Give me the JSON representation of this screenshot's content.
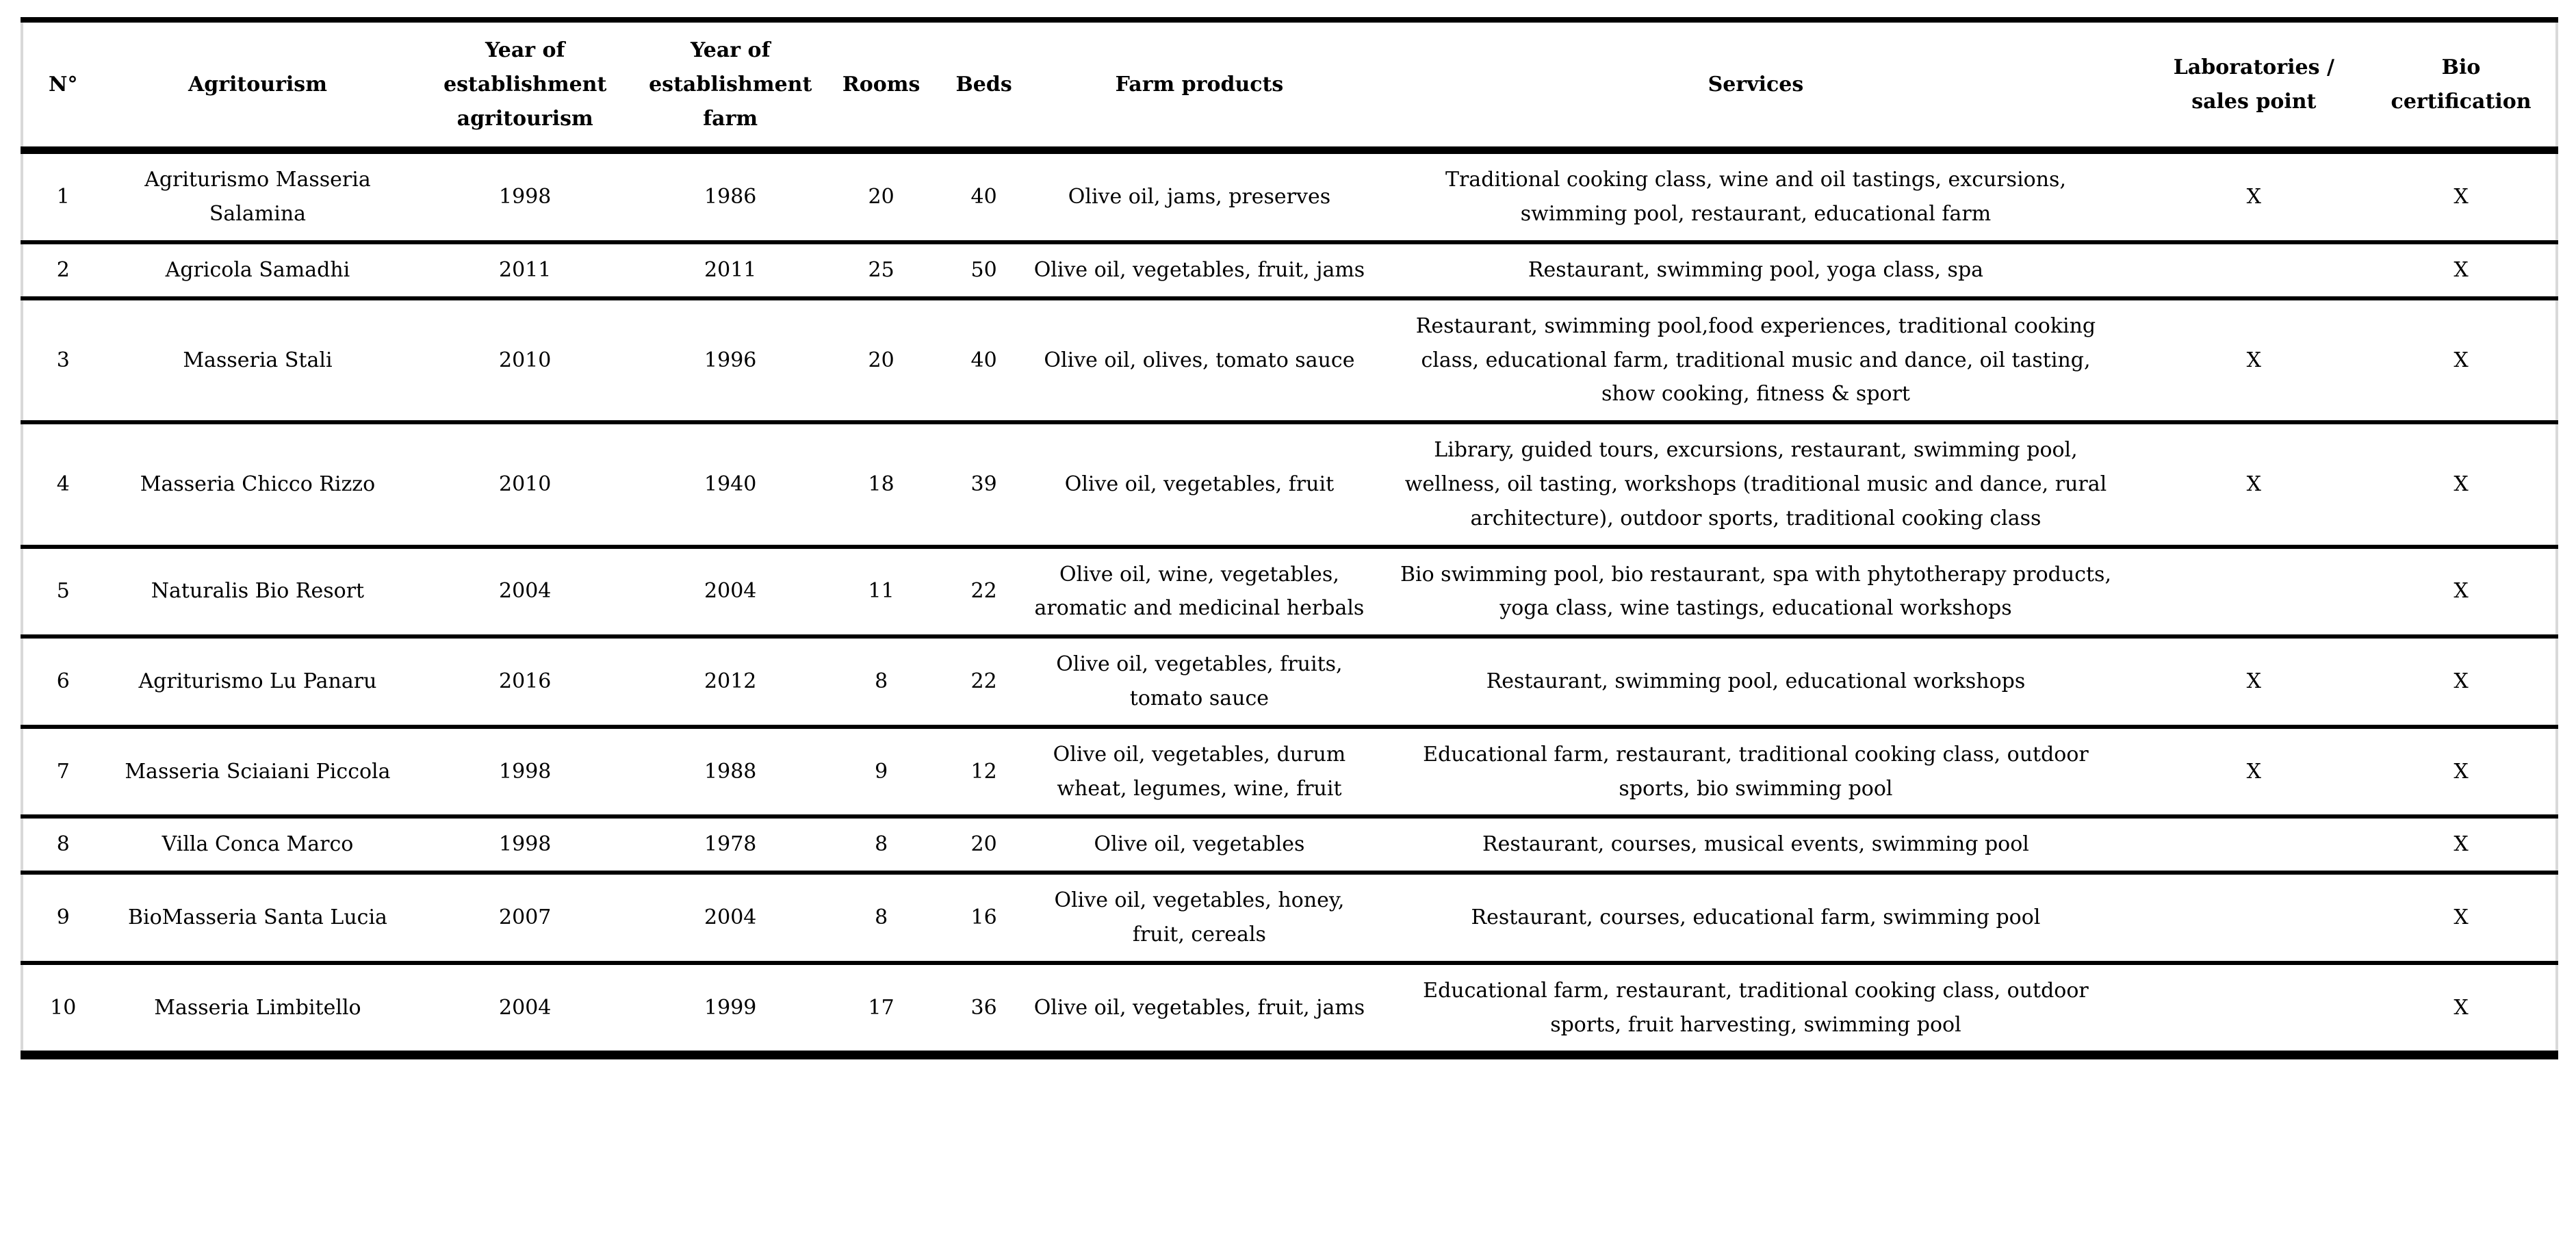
{
  "table": {
    "columns": [
      {
        "id": "n",
        "label": "N°"
      },
      {
        "id": "agritourism",
        "label": "Agritourism"
      },
      {
        "id": "year_establishment_agritourism",
        "label": "Year of establishment agritourism"
      },
      {
        "id": "year_establishment_farm",
        "label": "Year of establishment farm"
      },
      {
        "id": "rooms",
        "label": "Rooms"
      },
      {
        "id": "beds",
        "label": "Beds"
      },
      {
        "id": "farm_products",
        "label": "Farm products"
      },
      {
        "id": "services",
        "label": "Services"
      },
      {
        "id": "laboratories_sales_point",
        "label": "Laboratories / sales point"
      },
      {
        "id": "bio_certification",
        "label": "Bio certification"
      }
    ],
    "rows": [
      {
        "n": "1",
        "agritourism": "Agriturismo Masseria Salamina",
        "year_establishment_agritourism": "1998",
        "year_establishment_farm": "1986",
        "rooms": "20",
        "beds": "40",
        "farm_products": "Olive oil, jams, preserves",
        "services": "Traditional cooking class, wine and oil tastings, excursions, swimming pool, restaurant, educational farm",
        "laboratories_sales_point": "X",
        "bio_certification": "X"
      },
      {
        "n": "2",
        "agritourism": "Agricola Samadhi",
        "year_establishment_agritourism": "2011",
        "year_establishment_farm": "2011",
        "rooms": "25",
        "beds": "50",
        "farm_products": "Olive oil, vegetables, fruit, jams",
        "services": "Restaurant, swimming pool, yoga class, spa",
        "laboratories_sales_point": "",
        "bio_certification": "X"
      },
      {
        "n": "3",
        "agritourism": "Masseria Stali",
        "year_establishment_agritourism": "2010",
        "year_establishment_farm": "1996",
        "rooms": "20",
        "beds": "40",
        "farm_products": "Olive oil, olives, tomato sauce",
        "services": "Restaurant, swimming pool,food experiences, traditional cooking class, educational farm, traditional music and dance, oil tasting, show cooking, fitness & sport",
        "laboratories_sales_point": "X",
        "bio_certification": "X"
      },
      {
        "n": "4",
        "agritourism": "Masseria Chicco Rizzo",
        "year_establishment_agritourism": "2010",
        "year_establishment_farm": "1940",
        "rooms": "18",
        "beds": "39",
        "farm_products": "Olive oil, vegetables, fruit",
        "services": "Library, guided tours, excursions, restaurant, swimming pool, wellness, oil tasting, workshops (traditional music and dance, rural architecture), outdoor sports, traditional cooking class",
        "laboratories_sales_point": "X",
        "bio_certification": "X"
      },
      {
        "n": "5",
        "agritourism": "Naturalis Bio Resort",
        "year_establishment_agritourism": "2004",
        "year_establishment_farm": "2004",
        "rooms": "11",
        "beds": "22",
        "farm_products": "Olive oil, wine, vegetables, aromatic and medicinal herbals",
        "services": "Bio swimming pool, bio restaurant, spa with phytotherapy products, yoga class, wine tastings, educational workshops",
        "laboratories_sales_point": "",
        "bio_certification": "X"
      },
      {
        "n": "6",
        "agritourism": "Agriturismo Lu Panaru",
        "year_establishment_agritourism": "2016",
        "year_establishment_farm": "2012",
        "rooms": "8",
        "beds": "22",
        "farm_products": "Olive oil, vegetables, fruits, tomato sauce",
        "services": "Restaurant, swimming pool, educational workshops",
        "laboratories_sales_point": "X",
        "bio_certification": "X"
      },
      {
        "n": "7",
        "agritourism": "Masseria Sciaiani Piccola",
        "year_establishment_agritourism": "1998",
        "year_establishment_farm": "1988",
        "rooms": "9",
        "beds": "12",
        "farm_products": "Olive oil, vegetables, durum wheat, legumes, wine, fruit",
        "services": "Educational farm, restaurant, traditional cooking class, outdoor sports, bio swimming pool",
        "laboratories_sales_point": "X",
        "bio_certification": "X"
      },
      {
        "n": "8",
        "agritourism": "Villa Conca Marco",
        "year_establishment_agritourism": "1998",
        "year_establishment_farm": "1978",
        "rooms": "8",
        "beds": "20",
        "farm_products": "Olive oil, vegetables",
        "services": "Restaurant, courses, musical events, swimming pool",
        "laboratories_sales_point": "",
        "bio_certification": "X"
      },
      {
        "n": "9",
        "agritourism": "BioMasseria Santa Lucia",
        "year_establishment_agritourism": "2007",
        "year_establishment_farm": "2004",
        "rooms": "8",
        "beds": "16",
        "farm_products": "Olive oil, vegetables, honey, fruit, cereals",
        "services": "Restaurant, courses, educational farm, swimming pool",
        "laboratories_sales_point": "",
        "bio_certification": "X"
      },
      {
        "n": "10",
        "agritourism": "Masseria Limbitello",
        "year_establishment_agritourism": "2004",
        "year_establishment_farm": "1999",
        "rooms": "17",
        "beds": "36",
        "farm_products": "Olive oil, vegetables, fruit, jams",
        "services": "Educational farm, restaurant, traditional cooking class, outdoor sports, fruit harvesting, swimming pool",
        "laboratories_sales_point": "",
        "bio_certification": "X"
      }
    ]
  }
}
